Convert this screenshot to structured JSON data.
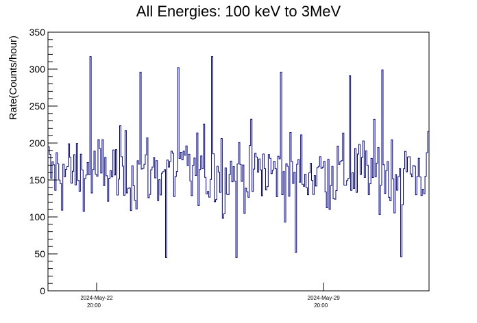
{
  "chart_data": {
    "type": "line",
    "title": "All Energies:  100 keV to 3MeV",
    "xlabel": "",
    "ylabel": "Rate(Counts/hour)",
    "ylim": [
      0,
      350
    ],
    "y_ticks": [
      0,
      50,
      100,
      150,
      200,
      250,
      300,
      350
    ],
    "xlim": [
      "2024-May-21 08:00",
      "2024-Jun-02 02:00"
    ],
    "x_ticks": [
      {
        "date": "2024-May-22",
        "time": "20:00"
      },
      {
        "date": "2024-May-29",
        "time": "20:00"
      }
    ],
    "grid": false,
    "legend": "none",
    "series": [
      {
        "color": "#00007f",
        "style": "hourly rate histogram",
        "mean": 160,
        "typical_range": [
          110,
          205
        ],
        "observed_min": 45,
        "observed_max": 317,
        "peaks": [
          {
            "x": "2024-May-22 15:00",
            "y": 317
          },
          {
            "x": "2024-May-26 09:00",
            "y": 317
          },
          {
            "x": "2024-May-25 08:00",
            "y": 302
          },
          {
            "x": "2024-May-31 15:00",
            "y": 299
          },
          {
            "x": "2024-May-28 12:00",
            "y": 296
          },
          {
            "x": "2024-May-24 04:00",
            "y": 296
          },
          {
            "x": "2024-May-30 15:00",
            "y": 291
          }
        ],
        "troughs": [
          {
            "x": "2024-May-24 23:00",
            "y": 45
          },
          {
            "x": "2024-May-27 03:00",
            "y": 45
          },
          {
            "x": "2024-Jun-01 05:00",
            "y": 46
          },
          {
            "x": "2024-May-28 23:00",
            "y": 52
          }
        ]
      }
    ]
  }
}
